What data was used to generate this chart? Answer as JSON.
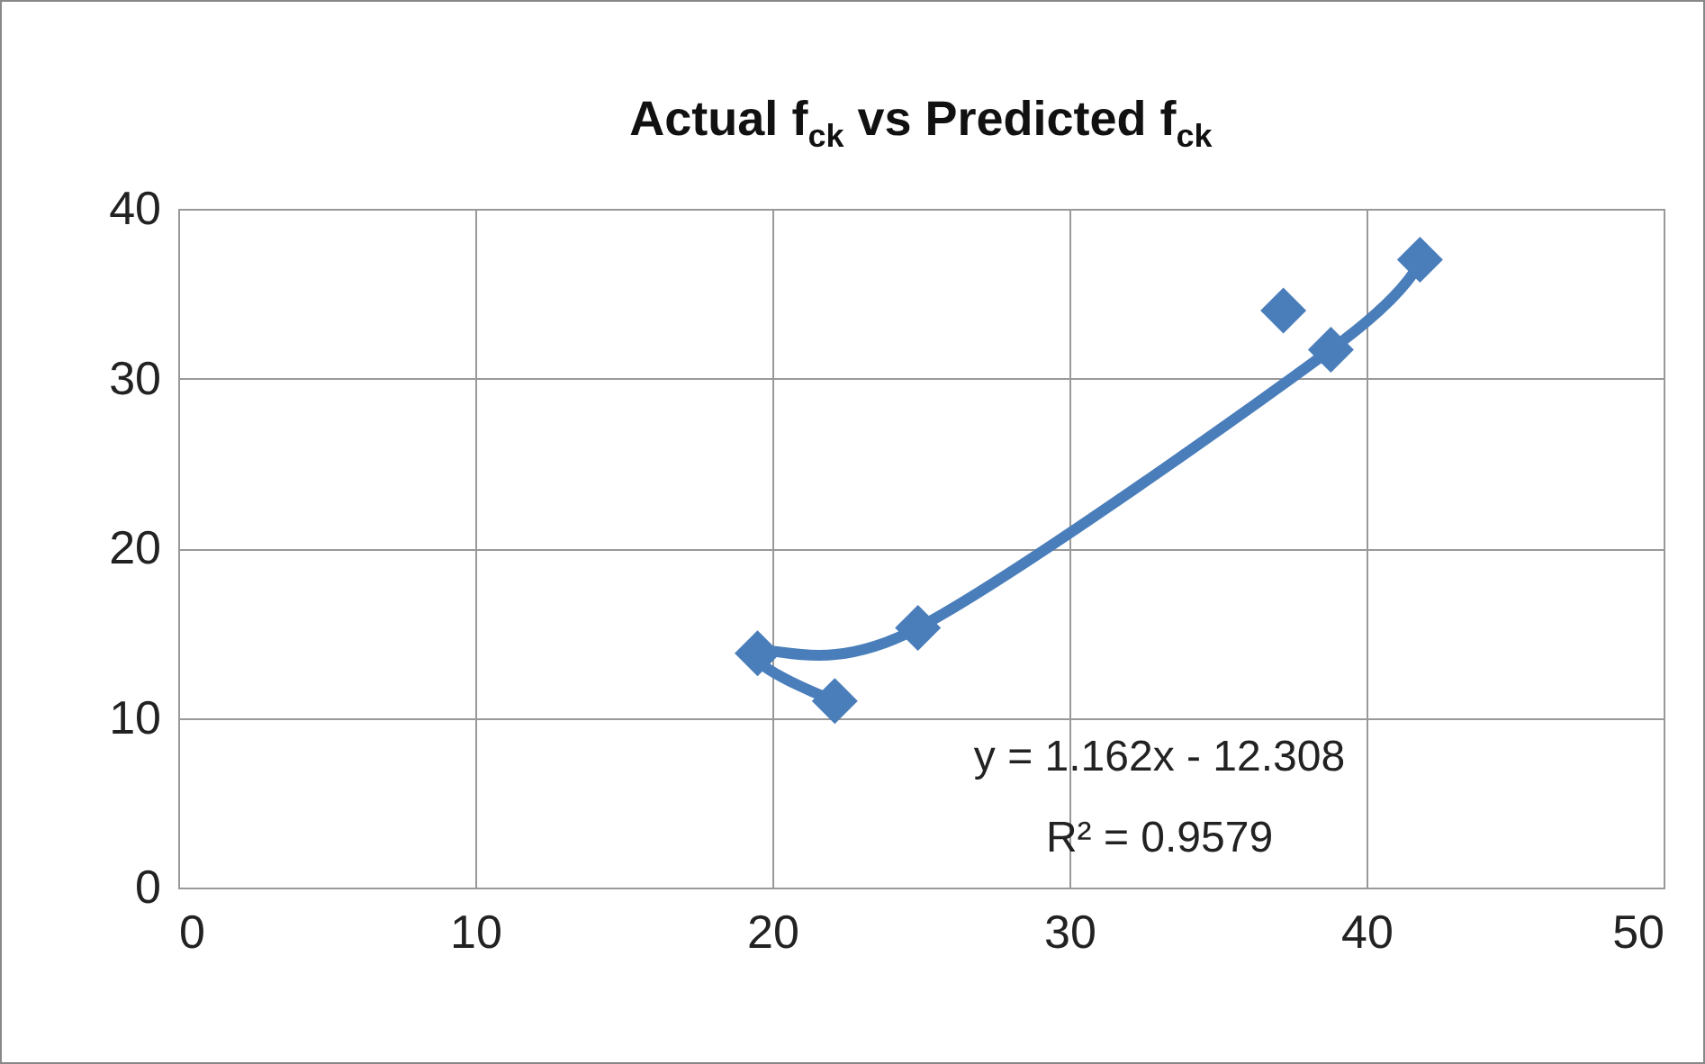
{
  "chart_data": {
    "type": "scatter",
    "title": "Actual f$_{ck}$ vs Predicted f$_{ck}$",
    "series": [
      {
        "color": "#4a7ebb",
        "marker": "diamond",
        "x": [
          19.5,
          22.1,
          24.9,
          37.2,
          38.8,
          41.8
        ],
        "values": [
          13.8,
          11.0,
          15.3,
          34.0,
          31.7,
          37.0
        ]
      },
      {
        "type": "line",
        "color": "#4a7ebb",
        "marker": "none",
        "line_style": "solid",
        "x": [
          22.1,
          19.5,
          24.9,
          38.8,
          41.8
        ],
        "values": [
          11.0,
          13.8,
          15.3,
          31.7,
          37.0
        ]
      }
    ],
    "xlim": [
      0,
      50
    ],
    "xticks": [
      0,
      10,
      20,
      30,
      40,
      50
    ],
    "ylim": [
      0,
      40
    ],
    "yticks": [
      0,
      10,
      20,
      30,
      40
    ],
    "grid": true,
    "annotations": [
      "y = 1.162x - 12.308",
      "R² = 0.9579"
    ]
  }
}
